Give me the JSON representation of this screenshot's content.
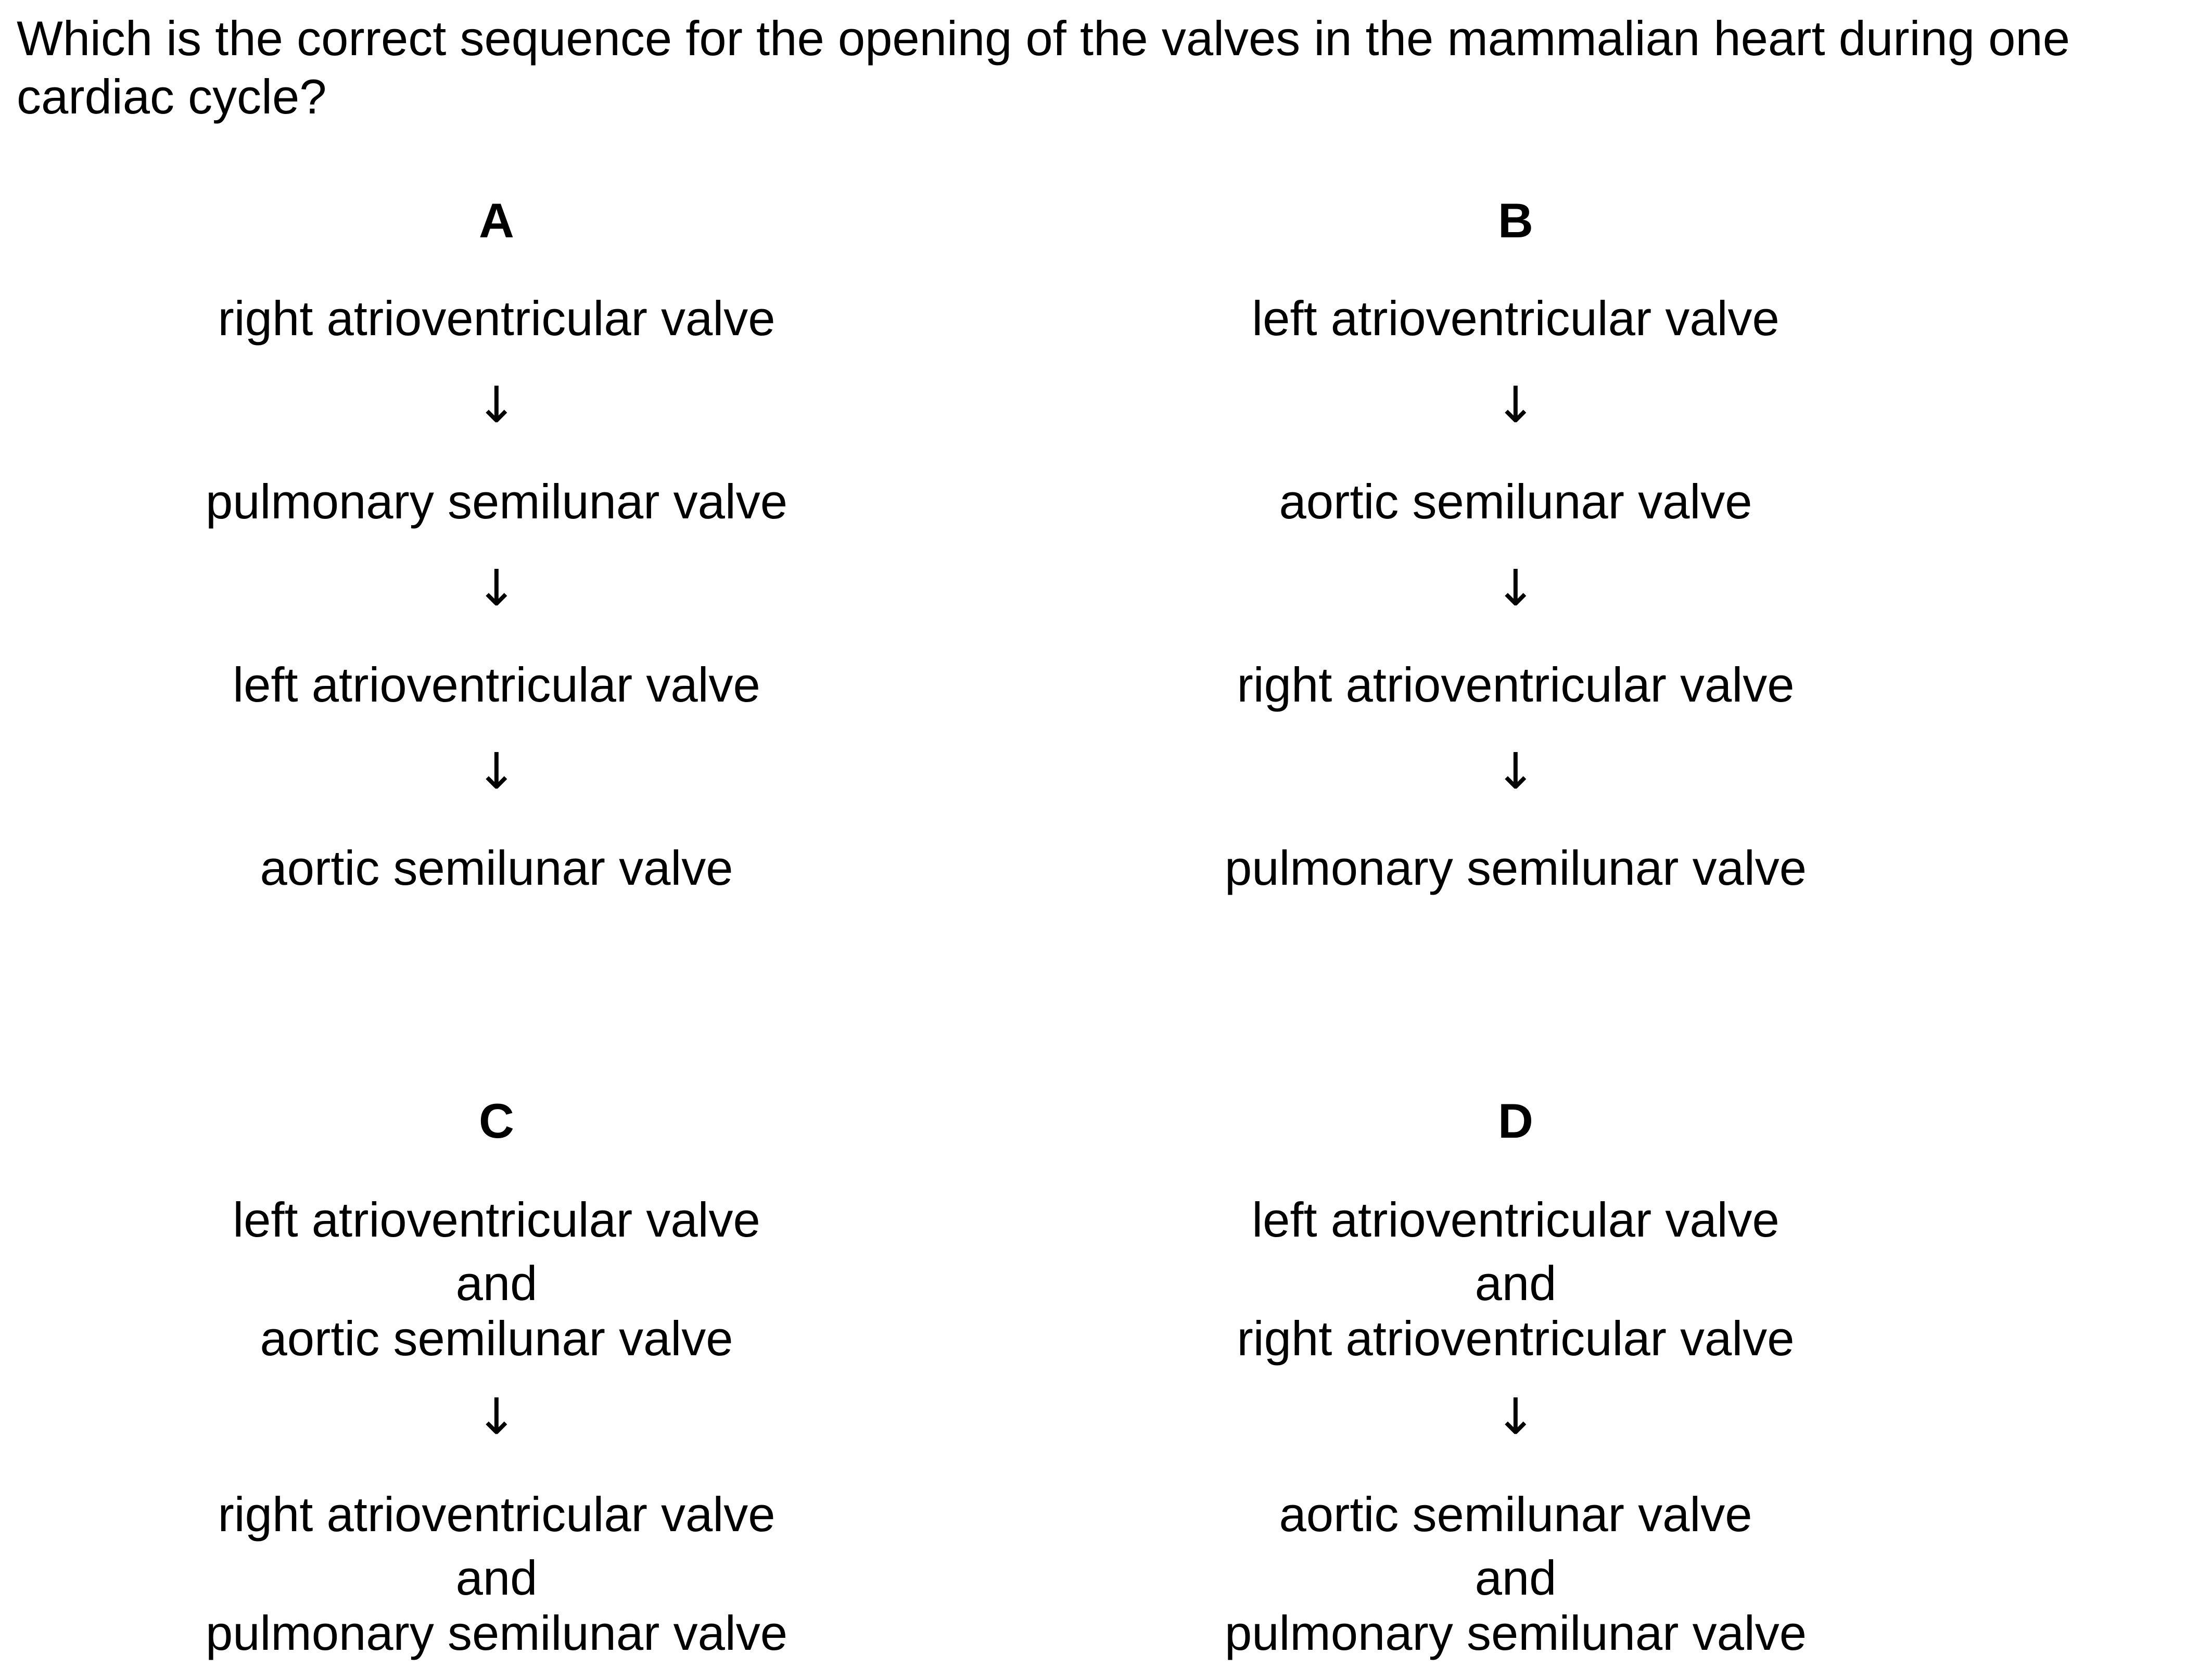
{
  "question": {
    "line1": "Which is the correct sequence for the opening of the valves in the mammalian heart during one",
    "line2": "cardiac cycle?"
  },
  "arrow_glyph": "↓",
  "options": {
    "A": {
      "letter": "A",
      "steps": [
        "right atrioventricular valve",
        "pulmonary semilunar valve",
        "left atrioventricular valve",
        "aortic semilunar valve"
      ]
    },
    "B": {
      "letter": "B",
      "steps": [
        "left atrioventricular valve",
        "aortic semilunar valve",
        "right atrioventricular valve",
        "pulmonary semilunar valve"
      ]
    },
    "C": {
      "letter": "C",
      "steps": [
        [
          "left atrioventricular valve",
          "and",
          "aortic semilunar valve"
        ],
        [
          "right atrioventricular valve",
          "and",
          "pulmonary semilunar valve"
        ]
      ]
    },
    "D": {
      "letter": "D",
      "steps": [
        [
          "left atrioventricular valve",
          "and",
          "right atrioventricular valve"
        ],
        [
          "aortic semilunar valve",
          "and",
          "pulmonary semilunar valve"
        ]
      ]
    }
  }
}
